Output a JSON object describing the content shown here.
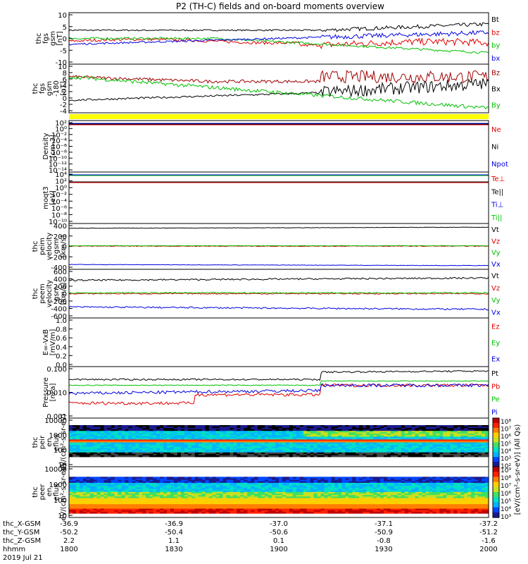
{
  "title": "P2 (TH-C) fields and on-board moments overview",
  "chart_data": {
    "type": "line",
    "panels": [
      {
        "ylabel": "thc fgs gsm [nT]",
        "yticks": [
          10,
          5,
          0,
          -5,
          -10
        ],
        "ylim": [
          -11,
          11
        ],
        "legend": [
          {
            "name": "Bt",
            "color": "#000000"
          },
          {
            "name": "bz",
            "color": "#e00000"
          },
          {
            "name": "by",
            "color": "#00c000"
          },
          {
            "name": "bx",
            "color": "#0000e0"
          }
        ]
      },
      {
        "ylabel": "thc fgs gsm -180 [nT]",
        "yticks": [
          10,
          8,
          6,
          4,
          2,
          0,
          -2,
          -4
        ],
        "ylim": [
          -4.5,
          11
        ],
        "legend": [
          {
            "name": "Bz",
            "color": "#a00000"
          },
          {
            "name": "Bx",
            "color": "#000000"
          },
          {
            "name": "By",
            "color": "#00c000"
          }
        ]
      },
      {
        "ylabel": "Density [cm-3]",
        "yticks": [
          "10²",
          "10⁰",
          "10⁻²",
          "10⁻⁴",
          "10⁻⁶",
          "10⁻⁸",
          "10⁻¹⁰",
          "10⁻¹²",
          "10⁻¹⁴"
        ],
        "legend": [
          {
            "name": "Ne",
            "color": "#e00000"
          },
          {
            "name": "Ni",
            "color": "#000000"
          },
          {
            "name": "Npot",
            "color": "#0000e0"
          }
        ]
      },
      {
        "ylabel": "moqt3 [eV]",
        "yticks": [
          "10⁴",
          "10²",
          "10⁰",
          "10⁻²",
          "10⁻⁴",
          "10⁻⁶",
          "10⁻⁸",
          "10⁻¹⁰"
        ],
        "legend": [
          {
            "name": "Te⊥",
            "color": "#e00000"
          },
          {
            "name": "Te||",
            "color": "#000000"
          },
          {
            "name": "Ti⊥",
            "color": "#0000e0"
          },
          {
            "name": "Ti||",
            "color": "#00c000"
          }
        ]
      },
      {
        "ylabel": "thc peim velocity gsm [km/s]",
        "yticks": [
          400,
          200,
          0,
          -200,
          -400
        ],
        "ylim": [
          -430,
          430
        ],
        "legend": [
          {
            "name": "Vt",
            "color": "#000000"
          },
          {
            "name": "Vz",
            "color": "#e00000"
          },
          {
            "name": "Vy",
            "color": "#00c000"
          },
          {
            "name": "Vx",
            "color": "#0000e0"
          }
        ]
      },
      {
        "ylabel": "thc peem velocity gsm [km/s]",
        "yticks": [
          600,
          400,
          200,
          0,
          -200,
          -400,
          -600
        ],
        "ylim": [
          -620,
          620
        ],
        "legend": [
          {
            "name": "Vt",
            "color": "#000000"
          },
          {
            "name": "Vz",
            "color": "#e00000"
          },
          {
            "name": "Vy",
            "color": "#00c000"
          },
          {
            "name": "Vx",
            "color": "#0000e0"
          }
        ]
      },
      {
        "ylabel": "E=-VxB [mV/m]",
        "yticks": [
          "1.0",
          "0.8",
          "0.6",
          "0.4",
          "0.2",
          "0.0"
        ],
        "ylim": [
          0,
          1
        ],
        "legend": [
          {
            "name": "Ez",
            "color": "#e00000"
          },
          {
            "name": "Ey",
            "color": "#00c000"
          },
          {
            "name": "Ex",
            "color": "#0000e0"
          }
        ]
      },
      {
        "ylabel": "Pressure [nPa]",
        "yticks": [
          "0.100",
          "0.010",
          "0.001"
        ],
        "legend": [
          {
            "name": "Pt",
            "color": "#000000"
          },
          {
            "name": "Pb",
            "color": "#e00000"
          },
          {
            "name": "Pe",
            "color": "#00c000"
          },
          {
            "name": "Pi",
            "color": "#0000e0"
          }
        ]
      },
      {
        "ylabel": "thc peir en eflux eV/(cm²-s-sr-eV)",
        "yticks": [
          "10000",
          "1000",
          "100",
          "10"
        ]
      },
      {
        "ylabel": "thc peer en eflux eV/(cm²-s-sr-eV)",
        "yticks": [
          "10000",
          "1000",
          "100",
          "10"
        ]
      }
    ],
    "colorbars": [
      {
        "label": "[eV/(cm²-s-sr-eV)] (All Qs)",
        "ticks": [
          "10⁸",
          "10⁷",
          "10⁶",
          "10⁵",
          "10⁴",
          "10³",
          "10²"
        ]
      },
      {
        "label": "[eV/(cm²-s-sr-eV)]",
        "ticks": [
          "10⁹",
          "10⁸",
          "10⁷",
          "10⁶",
          "10⁵",
          "10⁴",
          "10³"
        ]
      }
    ],
    "xaxis": {
      "rows": [
        {
          "label": "thc_X-GSM",
          "values": [
            "-36.9",
            "-36.9",
            "-37.0",
            "-37.1",
            "-37.2"
          ]
        },
        {
          "label": "thc_Y-GSM",
          "values": [
            "-50.2",
            "-50.4",
            "-50.6",
            "-50.9",
            "-51.2"
          ]
        },
        {
          "label": "thc_Z-GSM",
          "values": [
            "2.2",
            "1.1",
            "0.1",
            "-0.8",
            "-1.6"
          ]
        },
        {
          "label": "hhmm",
          "values": [
            "1800",
            "1830",
            "1900",
            "1930",
            "2000"
          ]
        }
      ],
      "date": "2019 Jul 21"
    }
  }
}
